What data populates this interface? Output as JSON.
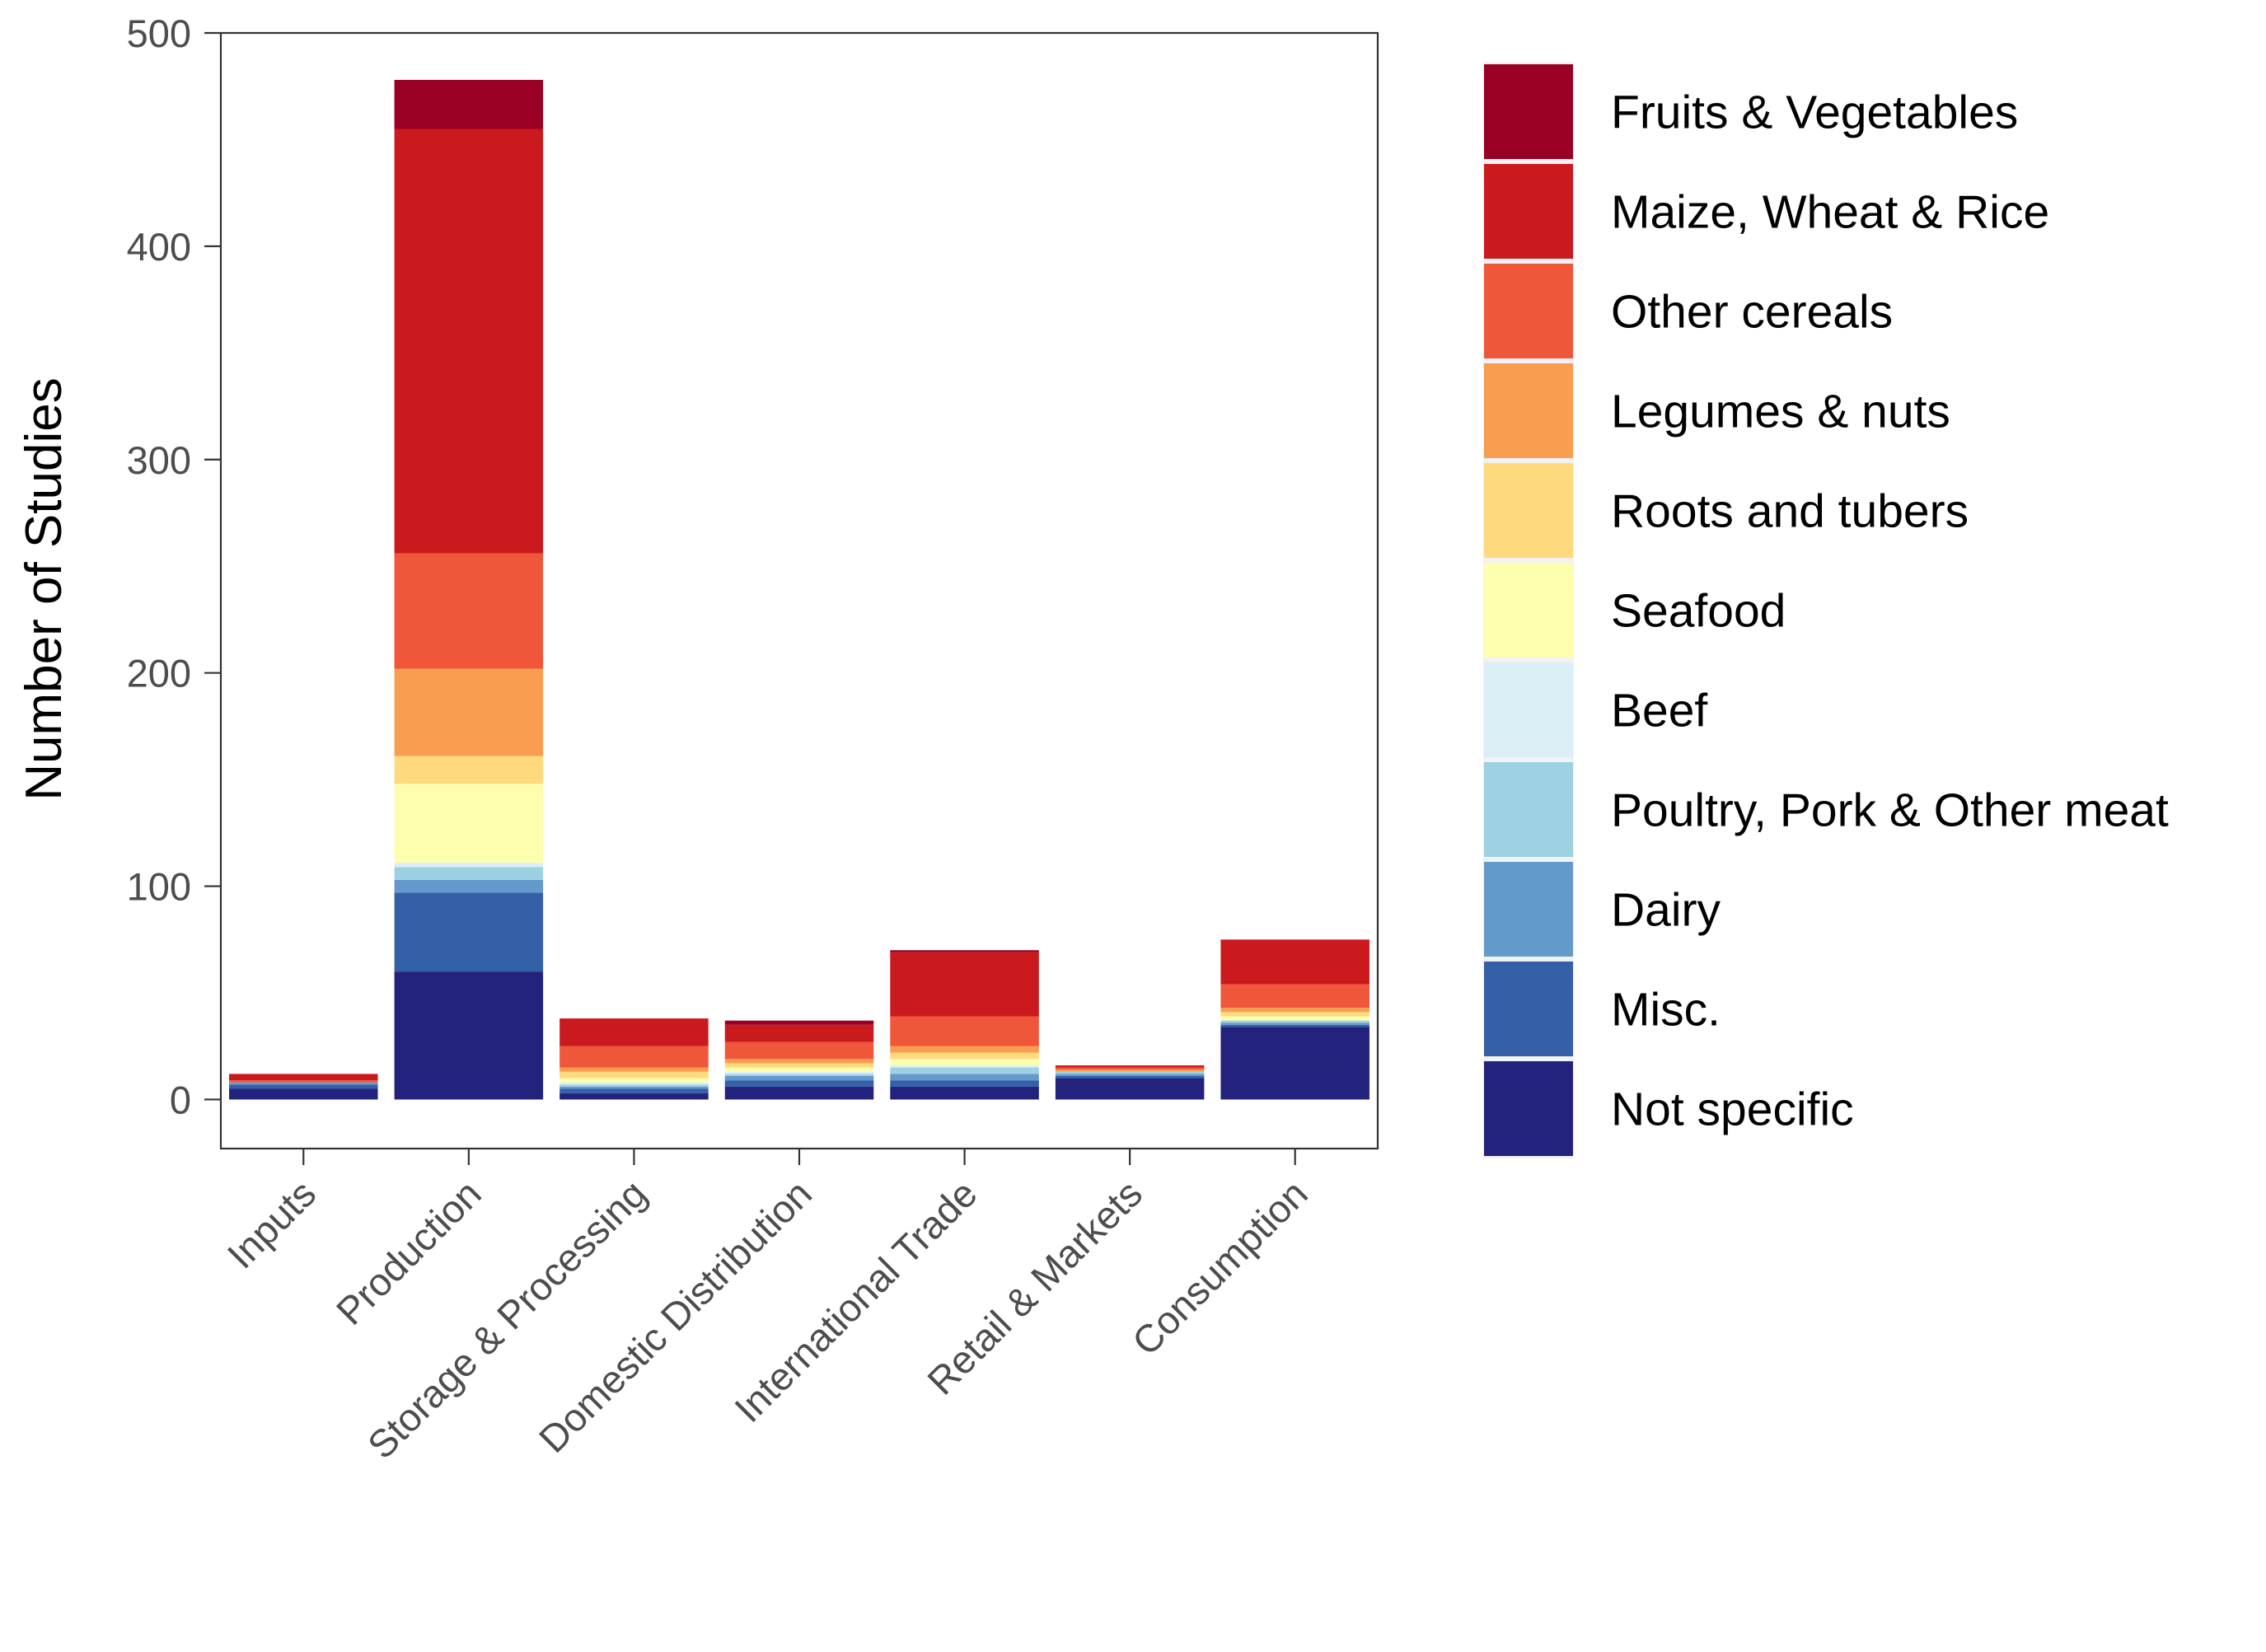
{
  "chart_data": {
    "type": "bar",
    "stacked": true,
    "ylabel": "Number of Studies",
    "xlabel": "",
    "ylim": [
      -23,
      500
    ],
    "yticks": [
      0,
      100,
      200,
      300,
      400,
      500
    ],
    "grid": false,
    "legend_position": "right",
    "categories": [
      "Inputs",
      "Production",
      "Storage & Processing",
      "Domestic Distribution",
      "International Trade",
      "Retail & Markets",
      "Consumption"
    ],
    "series": [
      {
        "name": "Not specific",
        "color": "#23237e",
        "values": [
          5,
          60,
          3,
          6,
          6,
          10,
          34
        ]
      },
      {
        "name": "Misc.",
        "color": "#3460a8",
        "values": [
          2,
          37,
          2,
          3,
          3,
          1,
          1
        ]
      },
      {
        "name": "Dairy",
        "color": "#649acb",
        "values": [
          1,
          6,
          1,
          2,
          3,
          1,
          1
        ]
      },
      {
        "name": "Poultry, Pork & Other meat",
        "color": "#9ed0e4",
        "values": [
          0,
          6,
          1,
          1,
          3,
          1,
          1
        ]
      },
      {
        "name": "Beef",
        "color": "#daeff6",
        "values": [
          0,
          2,
          1,
          1,
          1,
          0,
          0
        ]
      },
      {
        "name": "Seafood",
        "color": "#feffae",
        "values": [
          0,
          37,
          2,
          2,
          3,
          0,
          2
        ]
      },
      {
        "name": "Roots and tubers",
        "color": "#fed97e",
        "values": [
          0,
          13,
          3,
          2,
          3,
          0,
          2
        ]
      },
      {
        "name": "Legumes & nuts",
        "color": "#f99e50",
        "values": [
          0,
          41,
          2,
          2,
          3,
          1,
          2
        ]
      },
      {
        "name": "Other cereals",
        "color": "#f0563a",
        "values": [
          1,
          54,
          10,
          8,
          14,
          1,
          11
        ]
      },
      {
        "name": "Maize, Wheat & Rice",
        "color": "#cb1a1e",
        "values": [
          3,
          199,
          13,
          8,
          30,
          1,
          21
        ]
      },
      {
        "name": "Fruits & Vegetables",
        "color": "#990024",
        "values": [
          0,
          23,
          0,
          2,
          1,
          0,
          0
        ]
      }
    ]
  }
}
